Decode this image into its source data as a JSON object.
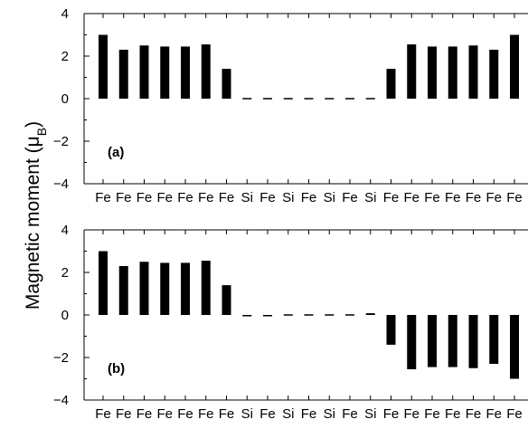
{
  "chart_data": [
    {
      "type": "bar",
      "panel_label": "(a)",
      "categories": [
        "Fe",
        "Fe",
        "Fe",
        "Fe",
        "Fe",
        "Fe",
        "Fe",
        "Si",
        "Fe",
        "Si",
        "Fe",
        "Si",
        "Fe",
        "Si",
        "Fe",
        "Fe",
        "Fe",
        "Fe",
        "Fe",
        "Fe",
        "Fe"
      ],
      "values": [
        3.0,
        2.3,
        2.5,
        2.45,
        2.45,
        2.55,
        1.4,
        0.0,
        0.0,
        0.0,
        0.03,
        0.0,
        0.0,
        0.0,
        1.4,
        2.55,
        2.45,
        2.45,
        2.5,
        2.3,
        3.0
      ],
      "ylabel": "Magnetic moment (μB)",
      "ylim": [
        -4,
        4
      ],
      "yticks": [
        "4",
        "2",
        "0",
        "−2",
        "−4"
      ],
      "grid": false
    },
    {
      "type": "bar",
      "panel_label": "(b)",
      "categories": [
        "Fe",
        "Fe",
        "Fe",
        "Fe",
        "Fe",
        "Fe",
        "Fe",
        "Si",
        "Fe",
        "Si",
        "Fe",
        "Si",
        "Fe",
        "Si",
        "Fe",
        "Fe",
        "Fe",
        "Fe",
        "Fe",
        "Fe",
        "Fe"
      ],
      "values": [
        3.0,
        2.3,
        2.5,
        2.45,
        2.45,
        2.55,
        1.4,
        -0.05,
        -0.05,
        0.0,
        0.0,
        0.0,
        0.05,
        0.08,
        -1.4,
        -2.55,
        -2.45,
        -2.45,
        -2.5,
        -2.3,
        -3.0
      ],
      "ylabel": "Magnetic moment (μB)",
      "ylim": [
        -4,
        4
      ],
      "yticks": [
        "4",
        "2",
        "0",
        "−2",
        "−4"
      ],
      "grid": false
    }
  ],
  "ylabel": {
    "main": "Magnetic moment (μ",
    "sub": "B",
    "close": ")"
  }
}
